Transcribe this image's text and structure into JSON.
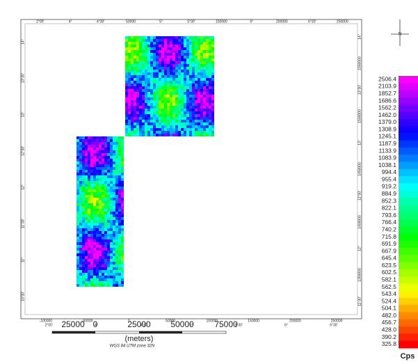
{
  "map": {
    "top_ticks": [
      "2°00'",
      "4°",
      "4°30'",
      "50000",
      "5°",
      "5°30'",
      "150000",
      "6°",
      "200000",
      "6°30'",
      "250000"
    ],
    "bottom_ticks": [
      "-100000",
      "-50000",
      "0",
      "50000",
      "100000",
      "150000",
      "200000",
      "250000"
    ],
    "bottom_degree_ticks": [
      "2°00'",
      "4°",
      "4°30'",
      "5°",
      "5°30'",
      "6°",
      "6°30'"
    ],
    "left_ticks": [
      "14°",
      "13°30'",
      "13°",
      "12°30'",
      "12°",
      "11°30'",
      "11°",
      "10°30'"
    ],
    "right_ticks": [
      "14°",
      "1550000",
      "13°30'",
      "1500000",
      "13°",
      "1450000",
      "12°30'",
      "1400000",
      "12°",
      "1350000",
      "11°30'"
    ]
  },
  "legend": {
    "labels": [
      "2506.4",
      "2103.9",
      "1852.7",
      "1686.6",
      "1562.2",
      "1462.0",
      "1379.0",
      "1308.9",
      "1245.1",
      "1187.9",
      "1133.9",
      "1083.9",
      "1038.1",
      "994.4",
      "955.4",
      "919.2",
      "884.9",
      "852.3",
      "822.1",
      "793.6",
      "766.4",
      "740.2",
      "715.8",
      "691.9",
      "667.9",
      "645.4",
      "623.5",
      "602.5",
      "582.1",
      "562.5",
      "543.4",
      "524.4",
      "504.1",
      "482.0",
      "456.7",
      "428.0",
      "390.2",
      "325.8"
    ],
    "unit": "Cps"
  },
  "scale_bar": {
    "labels": [
      "25000",
      "0",
      "25000",
      "50000",
      "75000"
    ],
    "unit": "(meters)",
    "projection": "WGS 84 UTM zone 32N"
  },
  "north": "N"
}
